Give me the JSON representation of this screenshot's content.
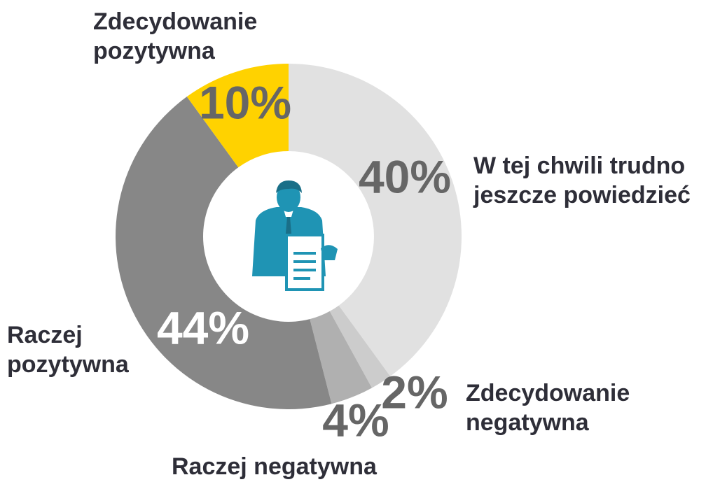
{
  "chart_data": {
    "type": "donut",
    "categories": [
      "W tej chwili trudno jeszcze powiedzieć",
      "Zdecydowanie negatywna",
      "Raczej negatywna",
      "Raczej pozytywna",
      "Zdecydowanie pozytywna"
    ],
    "values": [
      40,
      2,
      4,
      44,
      10
    ],
    "value_labels": [
      "40%",
      "2%",
      "4%",
      "44%",
      "10%"
    ],
    "colors": [
      "#e1e1e1",
      "#cccccc",
      "#b0b0b0",
      "#878787",
      "#ffd200"
    ]
  }
}
